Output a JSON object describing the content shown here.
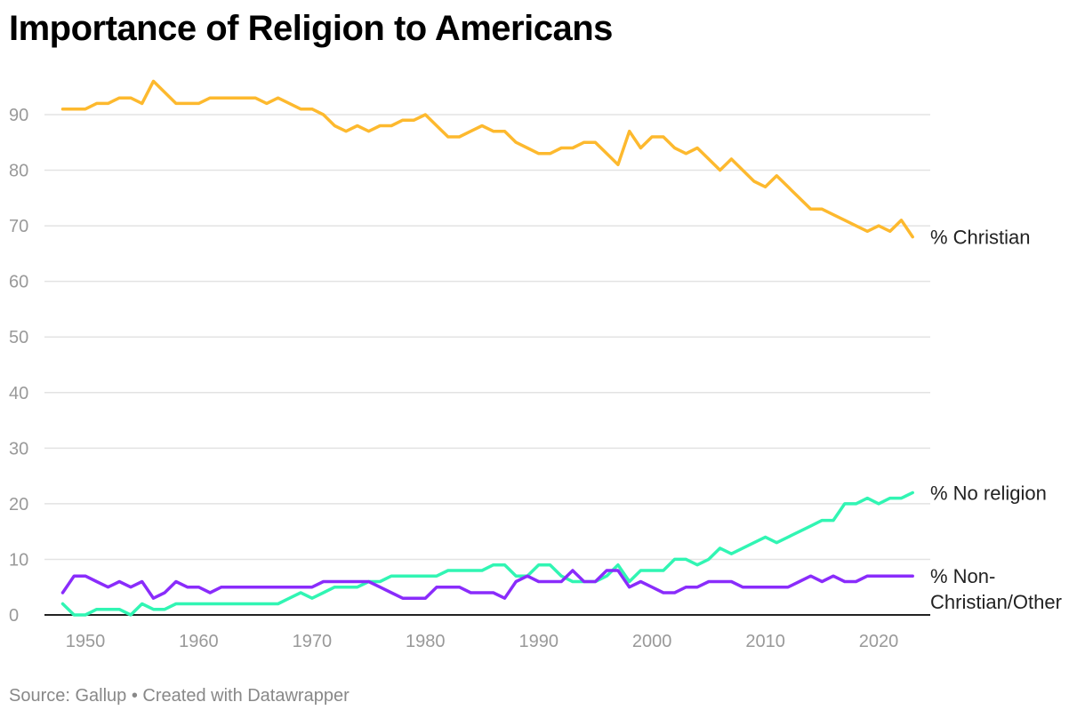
{
  "chart_data": {
    "type": "line",
    "title": "Importance of Religion to Americans",
    "source": "Source: Gallup • Created with Datawrapper",
    "xlim": [
      1948,
      2023
    ],
    "ylim": [
      0,
      95
    ],
    "yticks": [
      "0",
      "10",
      "20",
      "30",
      "40",
      "50",
      "60",
      "70",
      "80",
      "90"
    ],
    "xticks": [
      "1950",
      "1960",
      "1970",
      "1980",
      "1990",
      "2000",
      "2010",
      "2020"
    ],
    "grid": true,
    "start_year": 1948,
    "series": [
      {
        "name": "% Christian",
        "color": "#fdb92e",
        "values": [
          91,
          91,
          91,
          92,
          92,
          93,
          93,
          92,
          96,
          94,
          92,
          92,
          92,
          93,
          93,
          93,
          93,
          93,
          92,
          93,
          92,
          91,
          91,
          90,
          88,
          87,
          88,
          87,
          88,
          88,
          89,
          89,
          90,
          88,
          86,
          86,
          87,
          88,
          87,
          87,
          85,
          84,
          83,
          83,
          84,
          84,
          85,
          85,
          83,
          81,
          87,
          84,
          86,
          86,
          84,
          83,
          84,
          82,
          80,
          82,
          80,
          78,
          77,
          79,
          77,
          75,
          73,
          73,
          72,
          71,
          70,
          69,
          70,
          69,
          71,
          68
        ]
      },
      {
        "name": "% No religion",
        "color": "#31f5b3",
        "values": [
          2,
          0,
          0,
          1,
          1,
          1,
          0,
          2,
          1,
          1,
          2,
          2,
          2,
          2,
          2,
          2,
          2,
          2,
          2,
          2,
          3,
          4,
          3,
          4,
          5,
          5,
          5,
          6,
          6,
          7,
          7,
          7,
          7,
          7,
          8,
          8,
          8,
          8,
          9,
          9,
          7,
          7,
          9,
          9,
          7,
          6,
          6,
          6,
          7,
          9,
          6,
          8,
          8,
          8,
          10,
          10,
          9,
          10,
          12,
          11,
          12,
          13,
          14,
          13,
          14,
          15,
          16,
          17,
          17,
          20,
          20,
          21,
          20,
          21,
          21,
          22
        ]
      },
      {
        "name": "% Non-Christian/Other",
        "label_lines": [
          "% Non-",
          "Christian/Other"
        ],
        "color": "#8a2cfb",
        "values": [
          4,
          7,
          7,
          6,
          5,
          6,
          5,
          6,
          3,
          4,
          6,
          5,
          5,
          4,
          5,
          5,
          5,
          5,
          5,
          5,
          5,
          5,
          5,
          6,
          6,
          6,
          6,
          6,
          5,
          4,
          3,
          3,
          3,
          5,
          5,
          5,
          4,
          4,
          4,
          3,
          6,
          7,
          6,
          6,
          6,
          8,
          6,
          6,
          8,
          8,
          5,
          6,
          5,
          4,
          4,
          5,
          5,
          6,
          6,
          6,
          5,
          5,
          5,
          5,
          5,
          6,
          7,
          6,
          7,
          6,
          6,
          7,
          7,
          7,
          7,
          7
        ]
      }
    ]
  }
}
